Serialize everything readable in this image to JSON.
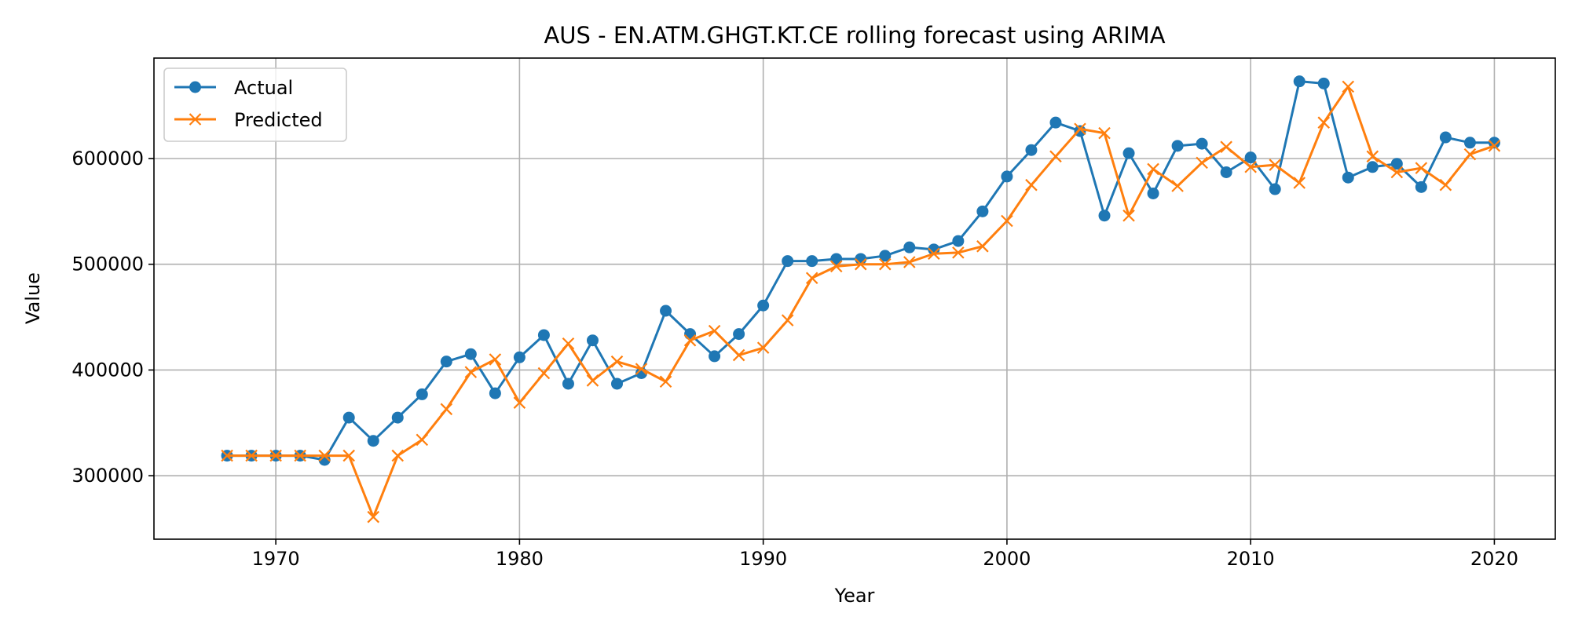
{
  "chart_data": {
    "type": "line",
    "title": "AUS - EN.ATM.GHGT.KT.CE rolling forecast using ARIMA",
    "xlabel": "Year",
    "ylabel": "Value",
    "xlim": [
      1965,
      2022.5
    ],
    "ylim": [
      240000,
      695000
    ],
    "xticks": [
      1970,
      1980,
      1990,
      2000,
      2010,
      2020
    ],
    "yticks": [
      300000,
      400000,
      500000,
      600000
    ],
    "grid": true,
    "legend_position": "top-left",
    "x": [
      1968,
      1969,
      1970,
      1971,
      1972,
      1973,
      1974,
      1975,
      1976,
      1977,
      1978,
      1979,
      1980,
      1981,
      1982,
      1983,
      1984,
      1985,
      1986,
      1987,
      1988,
      1989,
      1990,
      1991,
      1992,
      1993,
      1994,
      1995,
      1996,
      1997,
      1998,
      1999,
      2000,
      2001,
      2002,
      2003,
      2004,
      2005,
      2006,
      2007,
      2008,
      2009,
      2010,
      2011,
      2012,
      2013,
      2014,
      2015,
      2016,
      2017,
      2018,
      2019,
      2020
    ],
    "series": [
      {
        "name": "Actual",
        "color": "#1f77b4",
        "marker": "circle",
        "values": [
          319000,
          319000,
          319000,
          319000,
          315000,
          355000,
          333000,
          355000,
          377000,
          408000,
          415000,
          378000,
          412000,
          433000,
          387000,
          428000,
          387000,
          397000,
          456000,
          434000,
          413000,
          434000,
          461000,
          503000,
          503000,
          505000,
          505000,
          508000,
          516000,
          514000,
          522000,
          550000,
          583000,
          608000,
          634000,
          626000,
          546000,
          605000,
          567000,
          612000,
          614000,
          587000,
          601000,
          571000,
          673000,
          671000,
          582000,
          592000,
          595000,
          573000,
          620000,
          615000,
          615000
        ]
      },
      {
        "name": "Predicted",
        "color": "#ff7f0e",
        "marker": "x",
        "values": [
          319000,
          319000,
          319000,
          319000,
          319000,
          319000,
          261000,
          319000,
          334000,
          363000,
          398000,
          410000,
          369000,
          397000,
          425000,
          390000,
          408000,
          401000,
          389000,
          428000,
          437000,
          414000,
          421000,
          447000,
          487000,
          498000,
          500000,
          500000,
          502000,
          510000,
          511000,
          517000,
          541000,
          575000,
          602000,
          628000,
          624000,
          546000,
          590000,
          574000,
          596000,
          611000,
          592000,
          594000,
          577000,
          634000,
          668000,
          602000,
          587000,
          591000,
          575000,
          604000,
          612000
        ]
      }
    ]
  }
}
